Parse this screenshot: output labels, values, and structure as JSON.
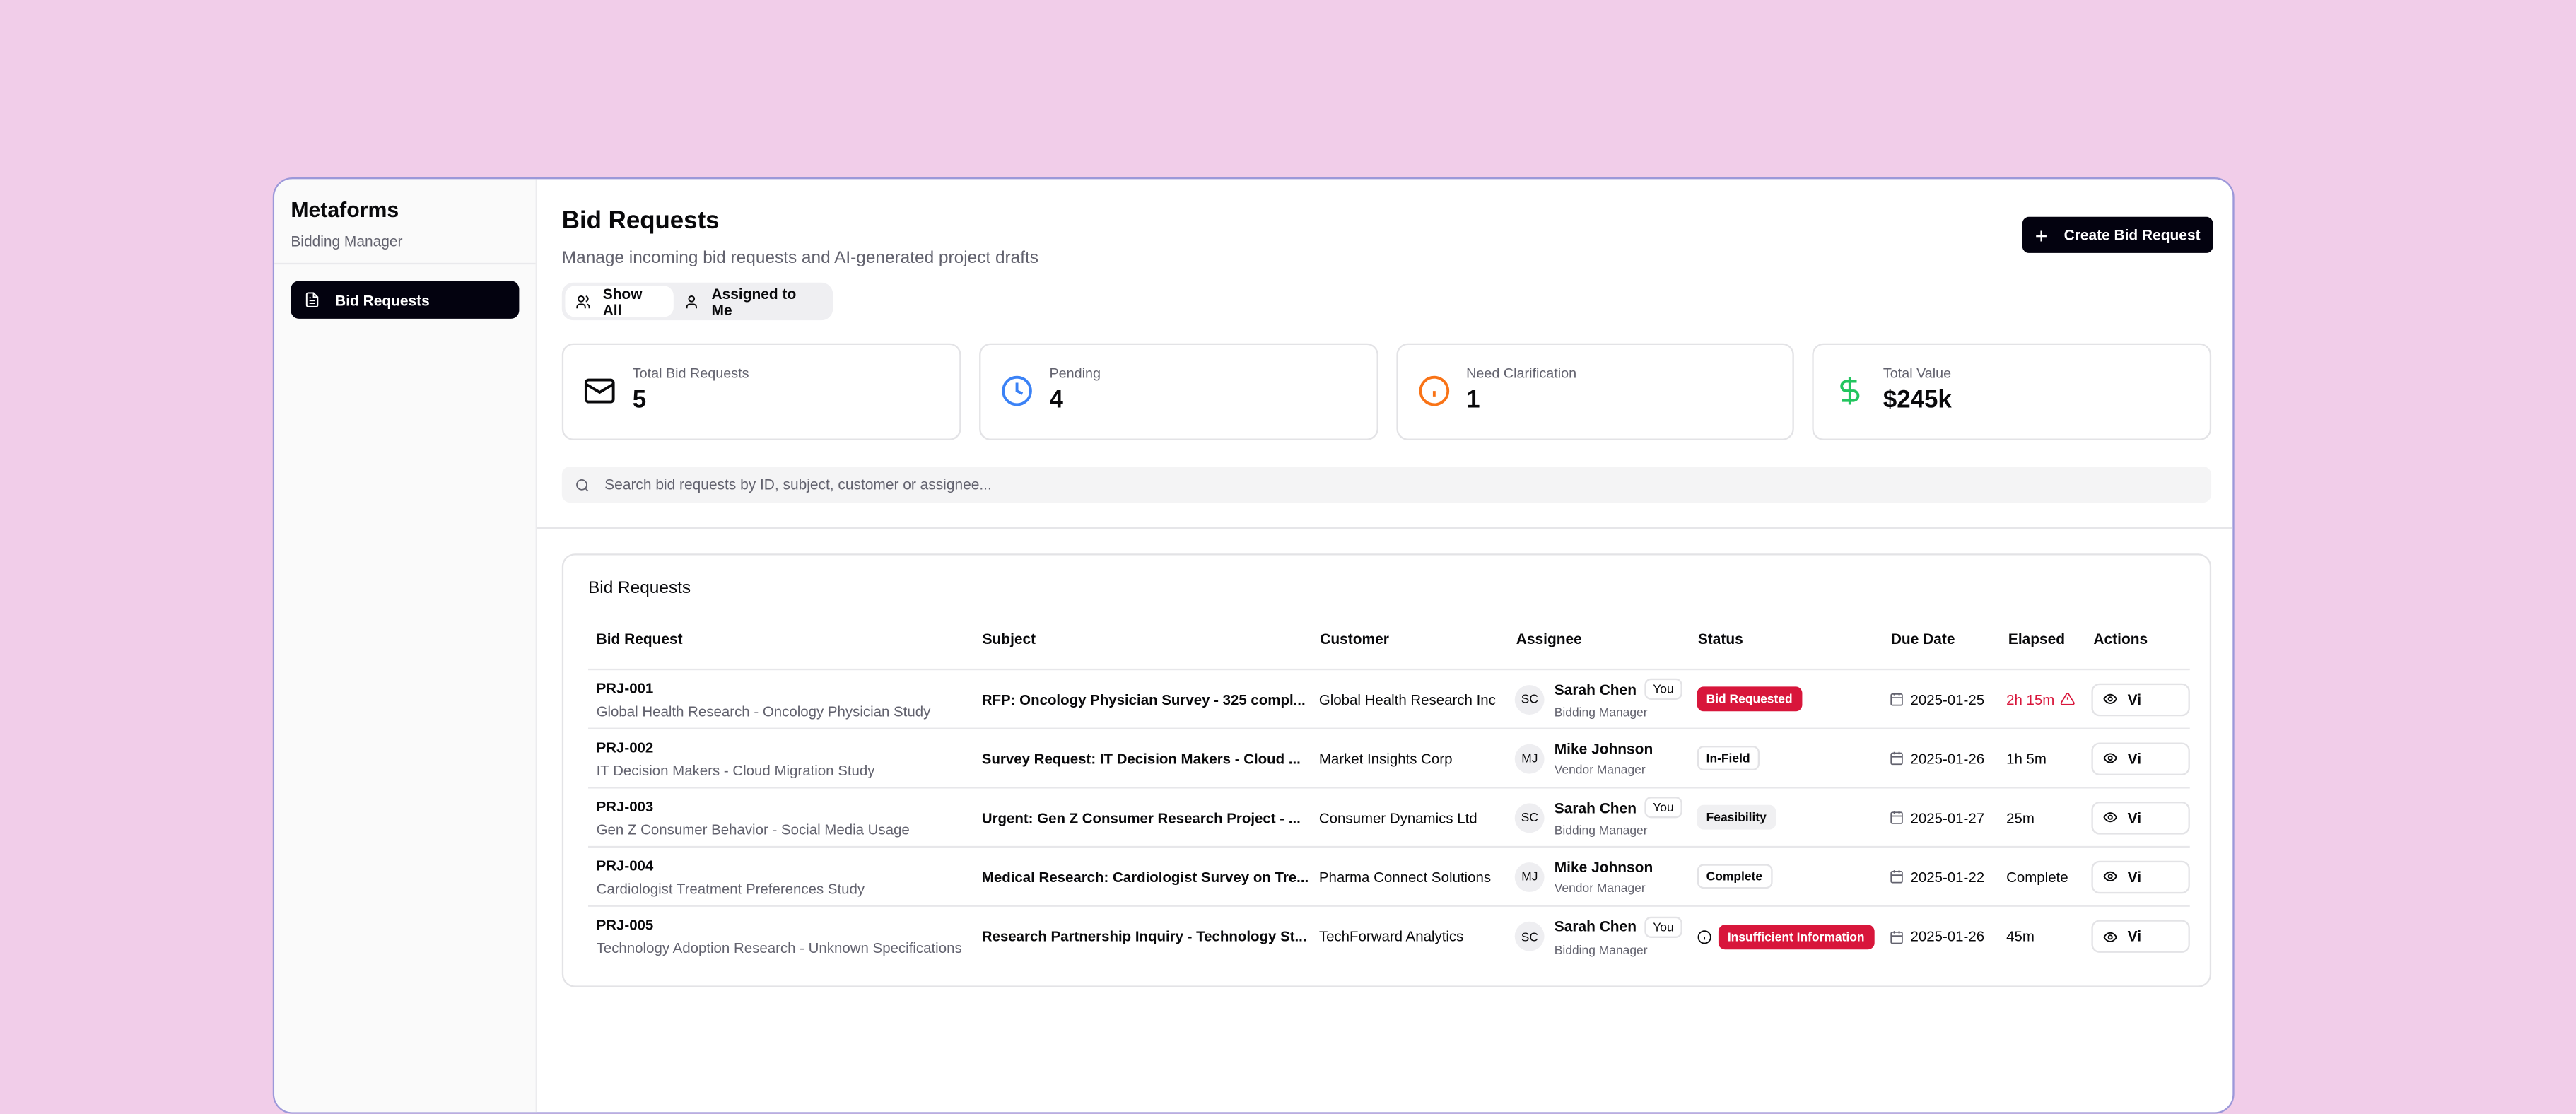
{
  "sidebar": {
    "brand": "Metaforms",
    "subtitle": "Bidding Manager",
    "items": [
      {
        "label": "Bid Requests",
        "icon": "file-text-icon",
        "active": true
      }
    ]
  },
  "header": {
    "title": "Bid Requests",
    "subtitle": "Manage incoming bid requests and AI-generated project drafts",
    "create_label": "Create Bid Request"
  },
  "filter": {
    "options": [
      {
        "label": "Show All",
        "active": true
      },
      {
        "label": "Assigned to Me",
        "active": false
      }
    ]
  },
  "stats": [
    {
      "label": "Total Bid Requests",
      "value": "5",
      "icon": "mail-icon",
      "color": "#09090b"
    },
    {
      "label": "Pending",
      "value": "4",
      "icon": "clock-icon",
      "color": "#3b82f6"
    },
    {
      "label": "Need Clarification",
      "value": "1",
      "icon": "info-icon",
      "color": "#f97316"
    },
    {
      "label": "Total Value",
      "value": "$245k",
      "icon": "dollar-icon",
      "color": "#22c55e"
    }
  ],
  "search": {
    "placeholder": "Search bid requests by ID, subject, customer or assignee..."
  },
  "table": {
    "title": "Bid Requests",
    "columns": [
      "Bid Request",
      "Subject",
      "Customer",
      "Assignee",
      "Status",
      "Due Date",
      "Elapsed",
      "Actions"
    ],
    "rows": [
      {
        "id": "PRJ-001",
        "desc": "Global Health Research - Oncology Physician Study",
        "subject": "RFP: Oncology Physician Survey - 325 compl...",
        "customer": "Global Health Research Inc",
        "initials": "SC",
        "assignee": "Sarah Chen",
        "you": "You",
        "role": "Bidding Manager",
        "status": "Bid Requested",
        "status_style": "red",
        "due": "2025-01-25",
        "elapsed": "2h 15m",
        "overdue": true,
        "action": "Vi"
      },
      {
        "id": "PRJ-002",
        "desc": "IT Decision Makers - Cloud Migration Study",
        "subject": "Survey Request: IT Decision Makers - Cloud ...",
        "customer": "Market Insights Corp",
        "initials": "MJ",
        "assignee": "Mike Johnson",
        "you": "",
        "role": "Vendor Manager",
        "status": "In-Field",
        "status_style": "outline",
        "due": "2025-01-26",
        "elapsed": "1h 5m",
        "overdue": false,
        "action": "Vi"
      },
      {
        "id": "PRJ-003",
        "desc": "Gen Z Consumer Behavior - Social Media Usage",
        "subject": "Urgent: Gen Z Consumer Research Project - ...",
        "customer": "Consumer Dynamics Ltd",
        "initials": "SC",
        "assignee": "Sarah Chen",
        "you": "You",
        "role": "Bidding Manager",
        "status": "Feasibility",
        "status_style": "gray",
        "due": "2025-01-27",
        "elapsed": "25m",
        "overdue": false,
        "action": "Vi"
      },
      {
        "id": "PRJ-004",
        "desc": "Cardiologist Treatment Preferences Study",
        "subject": "Medical Research: Cardiologist Survey on Tre...",
        "customer": "Pharma Connect Solutions",
        "initials": "MJ",
        "assignee": "Mike Johnson",
        "you": "",
        "role": "Vendor Manager",
        "status": "Complete",
        "status_style": "outline",
        "due": "2025-01-22",
        "elapsed": "Complete",
        "overdue": false,
        "action": "Vi"
      },
      {
        "id": "PRJ-005",
        "desc": "Technology Adoption Research - Unknown Specifications",
        "subject": "Research Partnership Inquiry - Technology St...",
        "customer": "TechForward Analytics",
        "initials": "SC",
        "assignee": "Sarah Chen",
        "you": "You",
        "role": "Bidding Manager",
        "status": "Insufficient Information",
        "status_style": "red",
        "status_info_icon": true,
        "due": "2025-01-26",
        "elapsed": "45m",
        "overdue": false,
        "action": "Vi"
      }
    ]
  }
}
